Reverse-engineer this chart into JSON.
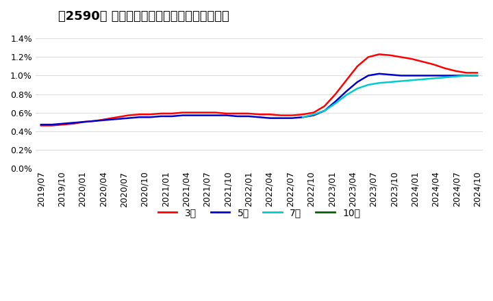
{
  "title": "［2590］ 経常利益マージンの標準偏差の推移",
  "ylim": [
    0.0,
    0.015
  ],
  "yticks": [
    0.0,
    0.002,
    0.004,
    0.006,
    0.008,
    0.01,
    0.012,
    0.014
  ],
  "series": {
    "3年": {
      "color": "#ff0000",
      "data_y": [
        0.0046,
        0.0046,
        0.0047,
        0.0048,
        0.005,
        0.0051,
        0.0053,
        0.0055,
        0.0057,
        0.0058,
        0.0058,
        0.0059,
        0.0059,
        0.006,
        0.006,
        0.006,
        0.006,
        0.0059,
        0.0059,
        0.0059,
        0.0058,
        0.0058,
        0.0057,
        0.0057,
        0.0058,
        0.006,
        0.0067,
        0.008,
        0.0095,
        0.011,
        0.012,
        0.0123,
        0.0122,
        0.012,
        0.0118,
        0.0115,
        0.0112,
        0.0108,
        0.0105,
        0.0103,
        0.0103
      ]
    },
    "5年": {
      "color": "#0000cd",
      "data_y": [
        0.0047,
        0.0047,
        0.0048,
        0.0049,
        0.005,
        0.0051,
        0.0052,
        0.0053,
        0.0054,
        0.0055,
        0.0055,
        0.0056,
        0.0056,
        0.0057,
        0.0057,
        0.0057,
        0.0057,
        0.0057,
        0.0056,
        0.0056,
        0.0055,
        0.0054,
        0.0054,
        0.0054,
        0.0055,
        0.0057,
        0.0062,
        0.0072,
        0.0083,
        0.0093,
        0.01,
        0.0102,
        0.0101,
        0.01,
        0.01,
        0.01,
        0.01,
        0.01,
        0.01,
        0.01,
        0.01
      ]
    },
    "7年": {
      "color": "#00cccc",
      "data_y": [
        null,
        null,
        null,
        null,
        null,
        null,
        null,
        null,
        null,
        null,
        null,
        null,
        null,
        null,
        null,
        null,
        null,
        null,
        null,
        null,
        null,
        null,
        null,
        null,
        0.0055,
        0.0058,
        0.0062,
        0.007,
        0.0079,
        0.0086,
        0.009,
        0.0092,
        0.0093,
        0.0094,
        0.0095,
        0.0096,
        0.0097,
        0.0098,
        0.0099,
        0.01,
        0.01
      ]
    },
    "10年": {
      "color": "#006400",
      "data_y": [
        null,
        null,
        null,
        null,
        null,
        null,
        null,
        null,
        null,
        null,
        null,
        null,
        null,
        null,
        null,
        null,
        null,
        null,
        null,
        null,
        null,
        null,
        null,
        null,
        null,
        null,
        null,
        null,
        null,
        null,
        null,
        null,
        null,
        null,
        null,
        null,
        null,
        null,
        null,
        null,
        null
      ]
    }
  },
  "x_labels": [
    "2019/07",
    "2019/10",
    "2020/01",
    "2020/04",
    "2020/07",
    "2020/10",
    "2021/01",
    "2021/04",
    "2021/07",
    "2021/10",
    "2022/01",
    "2022/04",
    "2022/07",
    "2022/10",
    "2023/01",
    "2023/04",
    "2023/07",
    "2023/10",
    "2024/01",
    "2024/04",
    "2024/07",
    "2024/10"
  ],
  "legend_labels": [
    "3年",
    "5年",
    "7年",
    "10年"
  ],
  "legend_colors": [
    "#ff0000",
    "#0000cd",
    "#00cccc",
    "#006400"
  ],
  "bg_color": "#ffffff",
  "grid_color": "#dddddd",
  "title_fontsize": 13,
  "tick_fontsize": 9
}
